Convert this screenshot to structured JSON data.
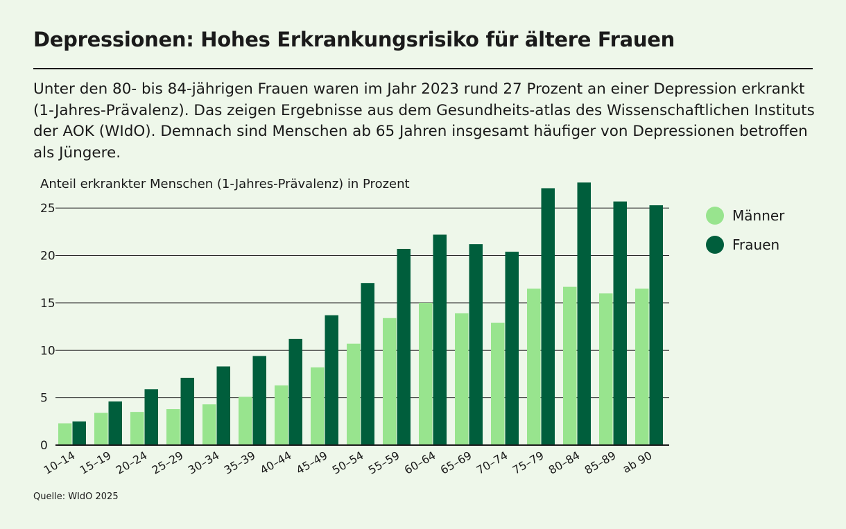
{
  "header": {
    "title": "Depressionen: Hohes Erkrankungsrisiko für ältere Frauen",
    "subtitle": "Unter den 80- bis 84-jährigen Frauen waren im Jahr 2023 rund 27 Prozent an einer Depression erkrankt (1-Jahres-Prävalenz). Das zeigen Ergebnisse aus dem Gesundheits-atlas des Wissenschaftlichen Instituts der AOK (WIdO). Demnach sind Menschen ab 65 Jahren insgesamt häufiger von Depressionen betroffen als Jüngere."
  },
  "footer": {
    "source": "Quelle: WIdO 2025"
  },
  "colors": {
    "maenner": "#98e48e",
    "frauen": "#005e3c",
    "background": "#eef7ea"
  },
  "chart_data": {
    "type": "bar",
    "ylabel": "Anteil erkrankter Menschen (1-Jahres-Prävalenz) in Prozent",
    "xlabel": "",
    "ylim": [
      0,
      27.5
    ],
    "yticks": [
      0,
      5,
      10,
      15,
      20,
      25
    ],
    "grid": true,
    "legend_position": "right",
    "categories": [
      "10–14",
      "15–19",
      "20–24",
      "25–29",
      "30–34",
      "35–39",
      "40–44",
      "45–49",
      "50–54",
      "55–59",
      "60–64",
      "65–69",
      "70–74",
      "75–79",
      "80–84",
      "85–89",
      "ab 90"
    ],
    "series": [
      {
        "name": "Männer",
        "color": "#98e48e",
        "values": [
          2.3,
          3.4,
          3.5,
          3.8,
          4.3,
          5.1,
          6.3,
          8.2,
          10.7,
          13.4,
          15.0,
          13.9,
          12.9,
          16.5,
          16.7,
          16.0,
          16.5
        ]
      },
      {
        "name": "Frauen",
        "color": "#005e3c",
        "values": [
          2.5,
          4.6,
          5.9,
          7.1,
          8.3,
          9.4,
          11.2,
          13.7,
          17.1,
          20.7,
          22.2,
          21.2,
          20.4,
          27.1,
          27.7,
          25.7,
          25.3
        ]
      }
    ]
  }
}
